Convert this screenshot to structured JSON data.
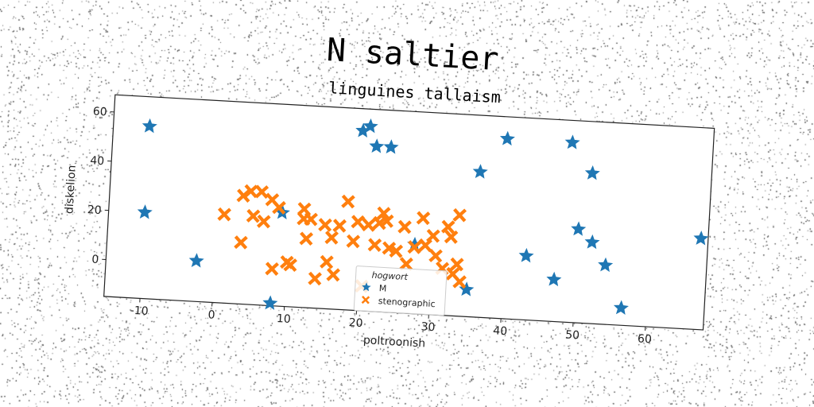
{
  "chart_data": {
    "type": "scatter",
    "title": "N saltier",
    "subtitle": "linguines tallaism",
    "xlabel": "poltroonish",
    "ylabel": "diskelion",
    "xlim": [
      -15,
      68
    ],
    "ylim": [
      -15,
      67
    ],
    "xticks": [
      -10,
      0,
      10,
      20,
      30,
      40,
      50,
      60
    ],
    "yticks": [
      0,
      20,
      40,
      60
    ],
    "grid": false,
    "legend": {
      "title": "hogwort",
      "placement": "bottom-center"
    },
    "series": [
      {
        "name": "M",
        "marker": "star",
        "color": "#1f77b4",
        "points": [
          [
            -10,
            55
          ],
          [
            -10,
            20
          ],
          [
            -2.5,
            1.5
          ],
          [
            8,
            -14
          ],
          [
            9,
            23
          ],
          [
            19.5,
            58
          ],
          [
            20.5,
            60
          ],
          [
            21.5,
            52
          ],
          [
            23.5,
            52
          ],
          [
            27.5,
            13
          ],
          [
            35,
            -4
          ],
          [
            36,
            44
          ],
          [
            39.5,
            58
          ],
          [
            43,
            11
          ],
          [
            47,
            2
          ],
          [
            48.5,
            58
          ],
          [
            50,
            23
          ],
          [
            51.5,
            46
          ],
          [
            52,
            18
          ],
          [
            54,
            9
          ],
          [
            56.5,
            -8
          ],
          [
            67,
            22
          ]
        ]
      },
      {
        "name": "stenographic",
        "marker": "x",
        "color": "#ff7f0e",
        "points": [
          [
            1,
            21
          ],
          [
            3.5,
            29
          ],
          [
            3.5,
            10
          ],
          [
            4.5,
            31
          ],
          [
            5,
            21
          ],
          [
            6,
            31
          ],
          [
            6.5,
            19
          ],
          [
            7.5,
            28
          ],
          [
            8,
            0
          ],
          [
            8.5,
            25
          ],
          [
            10,
            3
          ],
          [
            10.5,
            2
          ],
          [
            12,
            21
          ],
          [
            12,
            25
          ],
          [
            12.5,
            13
          ],
          [
            13,
            21
          ],
          [
            14,
            -3
          ],
          [
            15,
            19
          ],
          [
            15.5,
            4
          ],
          [
            16,
            14
          ],
          [
            16.5,
            -1
          ],
          [
            17,
            19
          ],
          [
            18,
            29
          ],
          [
            19,
            13
          ],
          [
            19.5,
            21
          ],
          [
            20.5,
            -5
          ],
          [
            21,
            20
          ],
          [
            22,
            12
          ],
          [
            22.5,
            21
          ],
          [
            23,
            25
          ],
          [
            23.5,
            22
          ],
          [
            24,
            11
          ],
          [
            25,
            10
          ],
          [
            26,
            20
          ],
          [
            26.5,
            5
          ],
          [
            27.5,
            12
          ],
          [
            28.5,
            24
          ],
          [
            29,
            13
          ],
          [
            30,
            17
          ],
          [
            30.5,
            9
          ],
          [
            31.5,
            4
          ],
          [
            32,
            21
          ],
          [
            32.5,
            17
          ],
          [
            33,
            2
          ],
          [
            33.5,
            6
          ],
          [
            33.5,
            26
          ],
          [
            34,
            -1
          ]
        ]
      }
    ]
  }
}
